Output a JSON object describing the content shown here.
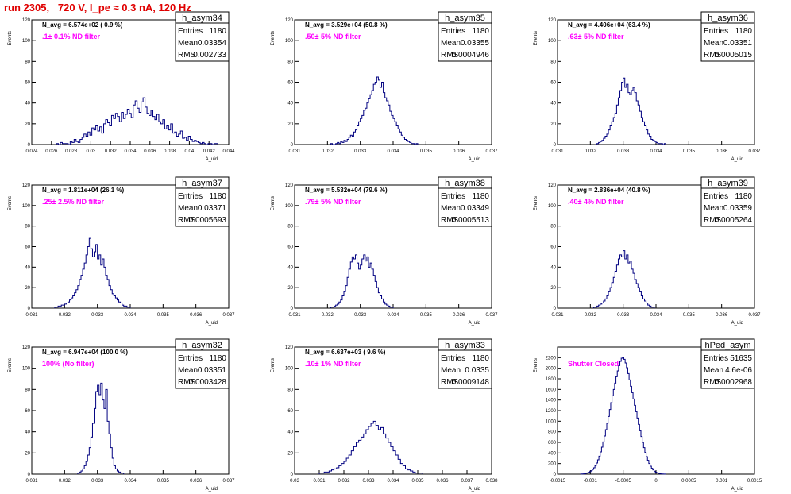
{
  "header": {
    "title": "run 2305,   720 V, I_pe ≈ 0.3 nA, 120 Hz"
  },
  "stats_labels": {
    "entries": "Entries",
    "mean": "Mean",
    "rms": "RMS"
  },
  "chart_data": [
    {
      "type": "bar",
      "name": "h_asym34",
      "navg": "N_avg = 6.574e+02 ( 0.9 %)",
      "filter": ".1± 0.1% ND filter",
      "entries": "1180",
      "mean": "0.03354",
      "rms": "0.002733",
      "xlim": [
        0.024,
        0.044
      ],
      "ylim": [
        0,
        120
      ],
      "xticks": [
        "0.024",
        "0.026",
        "0.028",
        "0.03",
        "0.032",
        "0.034",
        "0.036",
        "0.038",
        "0.04",
        "0.042",
        "0.044"
      ],
      "yticks": [
        "0",
        "20",
        "40",
        "60",
        "80",
        "100",
        "120"
      ],
      "xlabel": "A_uid",
      "ylabel": "Events",
      "bin_lo": 0.0265,
      "bin_w": 0.0002,
      "values": [
        1,
        0,
        2,
        1,
        1,
        1,
        0,
        3,
        2,
        5,
        3,
        2,
        5,
        7,
        10,
        8,
        12,
        9,
        16,
        14,
        18,
        13,
        17,
        11,
        20,
        24,
        21,
        18,
        28,
        25,
        30,
        27,
        22,
        31,
        25,
        29,
        34,
        30,
        26,
        38,
        42,
        35,
        31,
        41,
        45,
        36,
        30,
        28,
        33,
        27,
        24,
        29,
        22,
        20,
        24,
        15,
        18,
        14,
        20,
        11,
        12,
        8,
        10,
        13,
        6,
        7,
        4,
        8,
        5,
        3,
        4,
        3,
        2,
        1,
        2,
        1,
        0,
        1,
        1,
        0,
        1,
        1
      ]
    },
    {
      "type": "bar",
      "name": "h_asym35",
      "navg": "N_avg = 3.529e+04 (50.8 %)",
      "filter": ".50± 5% ND filter",
      "entries": "1180",
      "mean": "0.03355",
      "rms": "0.0004946",
      "xlim": [
        0.031,
        0.037
      ],
      "ylim": [
        0,
        120
      ],
      "xticks": [
        "0.031",
        "0.032",
        "0.033",
        "0.034",
        "0.035",
        "0.036",
        "0.037"
      ],
      "yticks": [
        "0",
        "20",
        "40",
        "60",
        "80",
        "100",
        "120"
      ],
      "xlabel": "A_uid",
      "ylabel": "Events",
      "bin_lo": 0.0321,
      "bin_w": 5e-05,
      "values": [
        1,
        0,
        0,
        1,
        2,
        1,
        3,
        2,
        4,
        3,
        5,
        7,
        9,
        8,
        12,
        14,
        18,
        22,
        25,
        28,
        33,
        35,
        40,
        44,
        48,
        52,
        58,
        60,
        65,
        62,
        55,
        60,
        50,
        45,
        42,
        38,
        32,
        28,
        25,
        22,
        18,
        15,
        12,
        9,
        7,
        5,
        4,
        3,
        2,
        1,
        1,
        0,
        1
      ]
    },
    {
      "type": "bar",
      "name": "h_asym36",
      "navg": "N_avg = 4.406e+04 (63.4 %)",
      "filter": ".63± 5% ND filter",
      "entries": "1180",
      "mean": "0.03351",
      "rms": "0.0005015",
      "xlim": [
        0.031,
        0.037
      ],
      "ylim": [
        0,
        120
      ],
      "xticks": [
        "0.031",
        "0.032",
        "0.033",
        "0.034",
        "0.035",
        "0.036",
        "0.037"
      ],
      "yticks": [
        "0",
        "20",
        "40",
        "60",
        "80",
        "100",
        "120"
      ],
      "xlabel": "A_uid",
      "ylabel": "Events",
      "bin_lo": 0.0322,
      "bin_w": 5e-05,
      "values": [
        1,
        2,
        3,
        4,
        6,
        8,
        10,
        14,
        18,
        22,
        26,
        30,
        38,
        45,
        52,
        60,
        64,
        55,
        58,
        50,
        48,
        52,
        55,
        50,
        42,
        38,
        32,
        26,
        22,
        18,
        14,
        10,
        8,
        5,
        4,
        3,
        2,
        1,
        1,
        1,
        0,
        1
      ]
    },
    {
      "type": "bar",
      "name": "h_asym37",
      "navg": "N_avg = 1.811e+04 (26.1 %)",
      "filter": ".25± 2.5% ND filter",
      "entries": "1180",
      "mean": "0.03371",
      "rms": "0.0005693",
      "xlim": [
        0.031,
        0.037
      ],
      "ylim": [
        0,
        120
      ],
      "xticks": [
        "0.031",
        "0.032",
        "0.033",
        "0.034",
        "0.035",
        "0.036",
        "0.037"
      ],
      "yticks": [
        "0",
        "20",
        "40",
        "60",
        "80",
        "100",
        "120"
      ],
      "xlabel": "A_uid",
      "ylabel": "Events",
      "bin_lo": 0.0317,
      "bin_w": 5e-05,
      "values": [
        1,
        1,
        2,
        2,
        3,
        3,
        4,
        5,
        6,
        8,
        10,
        12,
        15,
        18,
        22,
        28,
        32,
        38,
        44,
        52,
        60,
        68,
        58,
        50,
        55,
        62,
        48,
        52,
        42,
        48,
        40,
        32,
        28,
        22,
        18,
        14,
        12,
        10,
        8,
        6,
        5,
        3,
        2,
        2,
        1,
        1
      ]
    },
    {
      "type": "bar",
      "name": "h_asym38",
      "navg": "N_avg = 5.532e+04 (79.6 %)",
      "filter": ".79± 5% ND filter",
      "entries": "1180",
      "mean": "0.03349",
      "rms": "0.0005513",
      "xlim": [
        0.031,
        0.037
      ],
      "ylim": [
        0,
        120
      ],
      "xticks": [
        "0.031",
        "0.032",
        "0.033",
        "0.034",
        "0.035",
        "0.036",
        "0.037"
      ],
      "yticks": [
        "0",
        "20",
        "40",
        "60",
        "80",
        "100",
        "120"
      ],
      "xlabel": "A_uid",
      "ylabel": "Events",
      "bin_lo": 0.0321,
      "bin_w": 5e-05,
      "values": [
        1,
        1,
        2,
        3,
        4,
        6,
        8,
        12,
        16,
        22,
        30,
        38,
        45,
        50,
        48,
        52,
        44,
        38,
        42,
        48,
        52,
        46,
        50,
        40,
        44,
        38,
        32,
        26,
        20,
        15,
        12,
        9,
        6,
        4,
        3,
        2,
        1,
        1
      ]
    },
    {
      "type": "bar",
      "name": "h_asym39",
      "navg": "N_avg = 2.836e+04 (40.8 %)",
      "filter": ".40± 4% ND filter",
      "entries": "1180",
      "mean": "0.03359",
      "rms": "0.0005264",
      "xlim": [
        0.031,
        0.037
      ],
      "ylim": [
        0,
        120
      ],
      "xticks": [
        "0.031",
        "0.032",
        "0.033",
        "0.034",
        "0.035",
        "0.036",
        "0.037"
      ],
      "yticks": [
        "0",
        "20",
        "40",
        "60",
        "80",
        "100",
        "120"
      ],
      "xlabel": "A_uid",
      "ylabel": "Events",
      "bin_lo": 0.0321,
      "bin_w": 5e-05,
      "values": [
        1,
        1,
        2,
        3,
        4,
        5,
        7,
        9,
        12,
        16,
        20,
        25,
        30,
        36,
        42,
        48,
        52,
        50,
        56,
        48,
        52,
        44,
        46,
        38,
        34,
        28,
        24,
        20,
        16,
        12,
        9,
        7,
        5,
        3,
        2,
        1,
        1
      ]
    },
    {
      "type": "bar",
      "name": "h_asym32",
      "navg": "N_avg = 6.947e+04 (100.0 %)",
      "filter": "100% (No filter)",
      "entries": "1180",
      "mean": "0.03351",
      "rms": "0.0003428",
      "xlim": [
        0.031,
        0.037
      ],
      "ylim": [
        0,
        120
      ],
      "xticks": [
        "0.031",
        "0.032",
        "0.033",
        "0.034",
        "0.035",
        "0.036",
        "0.037"
      ],
      "yticks": [
        "0",
        "20",
        "40",
        "60",
        "80",
        "100",
        "120"
      ],
      "xlabel": "A_uid",
      "ylabel": "Events",
      "bin_lo": 0.0324,
      "bin_w": 5e-05,
      "values": [
        1,
        2,
        3,
        5,
        8,
        12,
        18,
        25,
        35,
        48,
        62,
        78,
        84,
        75,
        86,
        70,
        62,
        80,
        50,
        38,
        25,
        15,
        8,
        5,
        3,
        2,
        1,
        1
      ]
    },
    {
      "type": "bar",
      "name": "h_asym33",
      "navg": "N_avg = 6.637e+03 ( 9.6 %)",
      "filter": ".10± 1% ND filter",
      "entries": "1180",
      "mean": "0.0335",
      "rms": "0.0009148",
      "xlim": [
        0.03,
        0.038
      ],
      "ylim": [
        0,
        120
      ],
      "xticks": [
        "0.03",
        "0.031",
        "0.032",
        "0.033",
        "0.034",
        "0.035",
        "0.036",
        "0.037",
        "0.038"
      ],
      "yticks": [
        "0",
        "20",
        "40",
        "60",
        "80",
        "100",
        "120"
      ],
      "xlabel": "A_uid",
      "ylabel": "Events",
      "bin_lo": 0.031,
      "bin_w": 0.0001,
      "values": [
        1,
        1,
        2,
        2,
        3,
        4,
        5,
        6,
        8,
        10,
        12,
        15,
        18,
        22,
        26,
        30,
        32,
        35,
        38,
        42,
        45,
        48,
        50,
        46,
        42,
        44,
        38,
        34,
        30,
        26,
        22,
        18,
        14,
        10,
        8,
        5,
        4,
        3,
        2,
        1,
        1,
        1
      ]
    },
    {
      "type": "bar",
      "name": "hPed_asym",
      "navg": "",
      "filter": "Shutter Closed",
      "entries": "51635",
      "mean": "4.6e-06",
      "rms": "0.0002968",
      "xlim": [
        -0.0015,
        0.0015
      ],
      "ylim": [
        0,
        2400
      ],
      "xticks": [
        "-0.0015",
        "-0.001",
        "-0.0005",
        "0",
        "0.0005",
        "0.001",
        "0.0015"
      ],
      "yticks": [
        "0",
        "200",
        "400",
        "600",
        "800",
        "1000",
        "1200",
        "1400",
        "1600",
        "1800",
        "2000",
        "2200"
      ],
      "xlabel": "A_uid",
      "ylabel": "Events",
      "bin_lo": -0.00115,
      "bin_w": 2e-05,
      "values": [
        2,
        4,
        6,
        10,
        16,
        24,
        34,
        48,
        66,
        90,
        120,
        160,
        210,
        270,
        340,
        420,
        510,
        610,
        720,
        840,
        960,
        1090,
        1220,
        1350,
        1480,
        1600,
        1720,
        1840,
        1950,
        2050,
        2130,
        2190,
        2200,
        2170,
        2100,
        2010,
        1900,
        1780,
        1660,
        1540,
        1420,
        1300,
        1180,
        1060,
        940,
        820,
        710,
        600,
        500,
        410,
        330,
        260,
        200,
        150,
        110,
        80,
        56,
        38,
        25,
        16,
        10,
        6,
        4,
        2,
        1
      ]
    }
  ]
}
